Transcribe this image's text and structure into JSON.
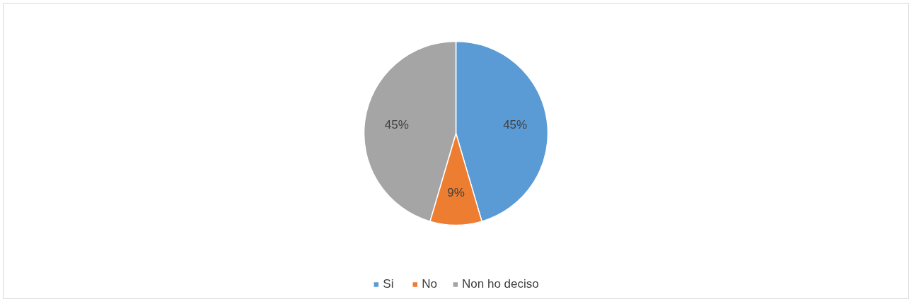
{
  "chart_data": {
    "type": "pie",
    "categories": [
      "Si",
      "No",
      "Non ho deciso"
    ],
    "values": [
      45,
      9,
      45
    ],
    "colors": [
      "#5b9bd5",
      "#ed7d31",
      "#a5a5a5"
    ],
    "value_labels": [
      "45%",
      "9%",
      "45%"
    ],
    "legend": "bottom"
  }
}
